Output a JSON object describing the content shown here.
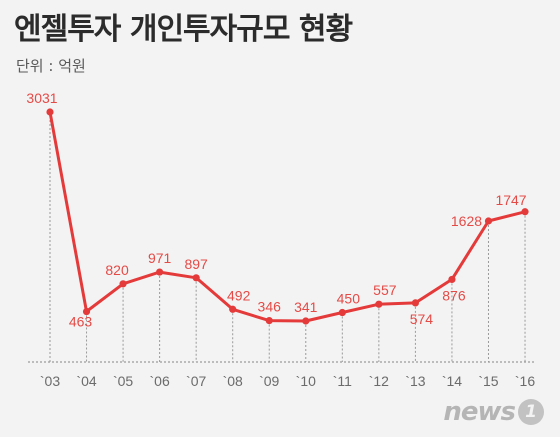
{
  "header": {
    "title": "엔젤투자 개인투자규모 현황",
    "unit": "단위 : 억원"
  },
  "brand": {
    "logo_text": "news",
    "logo_badge": "1"
  },
  "colors": {
    "line": "#e43a3a",
    "label": "#e44b47",
    "tick": "#6b6b6b",
    "guide": "#9a9a9a",
    "background": "#f3f3f3"
  },
  "chart_data": {
    "type": "line",
    "title": "엔젤투자 개인투자규모 현황",
    "subtitle": "단위 : 억원",
    "categories": [
      "`03",
      "`04",
      "`05",
      "`06",
      "`07",
      "`08",
      "`09",
      "`10",
      "`11",
      "`12",
      "`13",
      "`14",
      "`15",
      "`16"
    ],
    "series": [
      {
        "values": [
          3031,
          463,
          820,
          971,
          897,
          492,
          346,
          341,
          450,
          557,
          574,
          876,
          1628,
          1747
        ]
      }
    ],
    "ylim": [
      0,
      3200
    ],
    "grid": false,
    "legend": "none",
    "data_labels": true
  }
}
